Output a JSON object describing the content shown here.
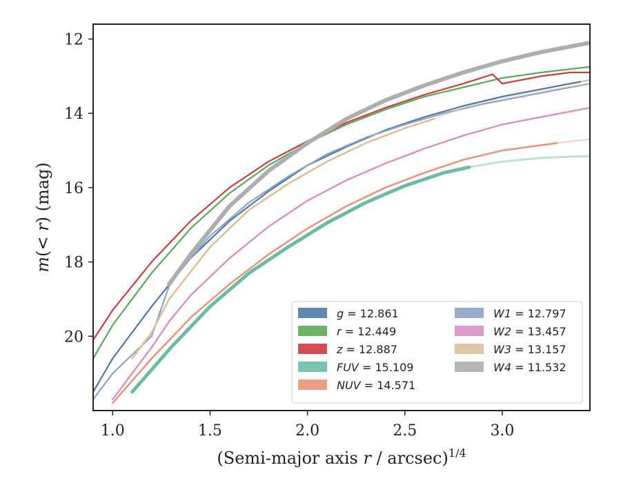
{
  "chart_data": {
    "type": "line",
    "xlabel": "(Semi-major axis r / arcsec)^{1/4}",
    "ylabel": "m(< r) (mag)",
    "xlim": [
      0.9,
      3.45
    ],
    "ylim": [
      22.0,
      11.6
    ],
    "y_inverted": true,
    "xticks": [
      "1.0",
      "1.5",
      "2.0",
      "2.5",
      "3.0"
    ],
    "yticks": [
      "12",
      "14",
      "16",
      "18",
      "20"
    ],
    "grid": false,
    "legend_position": "lower-right",
    "legend": [
      {
        "name_main": "g",
        "name_sup": "",
        "value": "= 12.861",
        "color": "#4c7aa8",
        "column": 0
      },
      {
        "name_main": "r",
        "name_sup": "",
        "value": "= 12.449",
        "color": "#5da95a",
        "column": 0
      },
      {
        "name_main": "z",
        "name_sup": "",
        "value": "= 12.887",
        "color": "#cc3e3e",
        "column": 0
      },
      {
        "name_main": "FUV",
        "name_sup": "",
        "value": "= 15.109",
        "color": "#6dbba6",
        "column": 0
      },
      {
        "name_main": "NUV",
        "name_sup": "",
        "value": "= 14.571",
        "color": "#e8967a",
        "column": 0
      },
      {
        "name_main": "W1",
        "name_sup": "",
        "value": "= 12.797",
        "color": "#90a2c8",
        "column": 1
      },
      {
        "name_main": "W2",
        "name_sup": "",
        "value": "= 13.457",
        "color": "#dc8ec4",
        "column": 1
      },
      {
        "name_main": "W3",
        "name_sup": "",
        "value": "= 13.157",
        "color": "#ddbf98",
        "column": 1
      },
      {
        "name_main": "W4",
        "name_sup": "",
        "value": "= 11.532",
        "color": "#aeaeae",
        "column": 1
      }
    ],
    "series": [
      {
        "name": "g",
        "color": "#4c7aa8",
        "solid_x_max": 3.4,
        "width": 2.2,
        "x": [
          0.9,
          1.0,
          1.2,
          1.4,
          1.6,
          1.8,
          2.0,
          2.2,
          2.4,
          2.6,
          2.8,
          3.0,
          3.2,
          3.4,
          3.45
        ],
        "y": [
          21.5,
          20.6,
          19.2,
          17.9,
          16.9,
          16.1,
          15.4,
          14.9,
          14.45,
          14.1,
          13.8,
          13.55,
          13.35,
          13.15,
          13.1
        ]
      },
      {
        "name": "r",
        "color": "#5da95a",
        "solid_x_max": 3.45,
        "width": 2.2,
        "x": [
          0.9,
          1.0,
          1.2,
          1.4,
          1.6,
          1.8,
          2.0,
          2.2,
          2.4,
          2.6,
          2.8,
          3.0,
          3.2,
          3.45
        ],
        "y": [
          20.6,
          19.7,
          18.3,
          17.1,
          16.15,
          15.4,
          14.8,
          14.3,
          13.9,
          13.55,
          13.3,
          13.05,
          12.9,
          12.75
        ]
      },
      {
        "name": "z",
        "color": "#cc3e3e",
        "solid_x_max": 3.45,
        "width": 2.2,
        "x": [
          0.9,
          1.0,
          1.2,
          1.4,
          1.6,
          1.8,
          2.0,
          2.2,
          2.4,
          2.6,
          2.8,
          2.95,
          3.0,
          3.2,
          3.35,
          3.45
        ],
        "y": [
          20.1,
          19.3,
          18.0,
          16.9,
          16.0,
          15.3,
          14.75,
          14.25,
          13.85,
          13.5,
          13.2,
          12.95,
          13.2,
          13.0,
          12.9,
          12.9
        ]
      },
      {
        "name": "FUV",
        "color": "#6dbba6",
        "solid_x_max": 2.83,
        "width": 5,
        "x": [
          1.1,
          1.3,
          1.5,
          1.7,
          1.9,
          2.1,
          2.3,
          2.5,
          2.7,
          2.83,
          3.0,
          3.2,
          3.45
        ],
        "y": [
          21.5,
          20.3,
          19.2,
          18.3,
          17.6,
          16.95,
          16.4,
          15.95,
          15.6,
          15.45,
          15.3,
          15.2,
          15.15
        ]
      },
      {
        "name": "NUV",
        "color": "#e8967a",
        "solid_x_max": 3.28,
        "width": 2.6,
        "x": [
          1.0,
          1.2,
          1.4,
          1.6,
          1.8,
          2.0,
          2.2,
          2.4,
          2.6,
          2.8,
          3.0,
          3.28,
          3.45
        ],
        "y": [
          21.8,
          20.6,
          19.5,
          18.6,
          17.8,
          17.1,
          16.5,
          16.0,
          15.6,
          15.25,
          15.0,
          14.8,
          14.7
        ]
      },
      {
        "name": "W1",
        "color": "#90a2c8",
        "solid_x_max": 3.45,
        "width": 2.2,
        "x": [
          0.9,
          1.0,
          1.2,
          1.3,
          1.5,
          1.7,
          1.9,
          2.1,
          2.3,
          2.5,
          2.7,
          2.9,
          3.1,
          3.3,
          3.45
        ],
        "y": [
          21.7,
          21.0,
          20.0,
          18.5,
          17.3,
          16.4,
          15.7,
          15.1,
          14.65,
          14.3,
          14.0,
          13.75,
          13.55,
          13.35,
          13.2
        ]
      },
      {
        "name": "W2",
        "color": "#dc8ec4",
        "solid_x_max": 3.45,
        "width": 2.4,
        "x": [
          1.0,
          1.2,
          1.29,
          1.4,
          1.6,
          1.8,
          2.0,
          2.2,
          2.4,
          2.6,
          2.8,
          3.0,
          3.2,
          3.45
        ],
        "y": [
          21.7,
          20.3,
          19.6,
          18.9,
          17.9,
          17.05,
          16.35,
          15.8,
          15.35,
          14.95,
          14.6,
          14.3,
          14.1,
          13.85
        ]
      },
      {
        "name": "W3",
        "color": "#ddbf98",
        "solid_x_max": 2.65,
        "width": 2.6,
        "x": [
          1.1,
          1.2,
          1.29,
          1.5,
          1.7,
          1.9,
          2.1,
          2.3,
          2.5,
          2.65,
          2.8,
          3.0,
          3.2,
          3.45
        ],
        "y": [
          20.6,
          19.9,
          19.0,
          17.6,
          16.6,
          15.9,
          15.3,
          14.8,
          14.4,
          14.15,
          13.85,
          13.6,
          13.4,
          13.2
        ]
      },
      {
        "name": "W4",
        "color": "#aeaeae",
        "solid_x_max": 3.45,
        "width": 6,
        "x": [
          1.29,
          1.4,
          1.6,
          1.8,
          2.0,
          2.2,
          2.4,
          2.6,
          2.8,
          3.0,
          3.2,
          3.45
        ],
        "y": [
          18.6,
          17.8,
          16.5,
          15.55,
          14.8,
          14.15,
          13.65,
          13.25,
          12.9,
          12.6,
          12.35,
          12.1
        ]
      }
    ]
  }
}
